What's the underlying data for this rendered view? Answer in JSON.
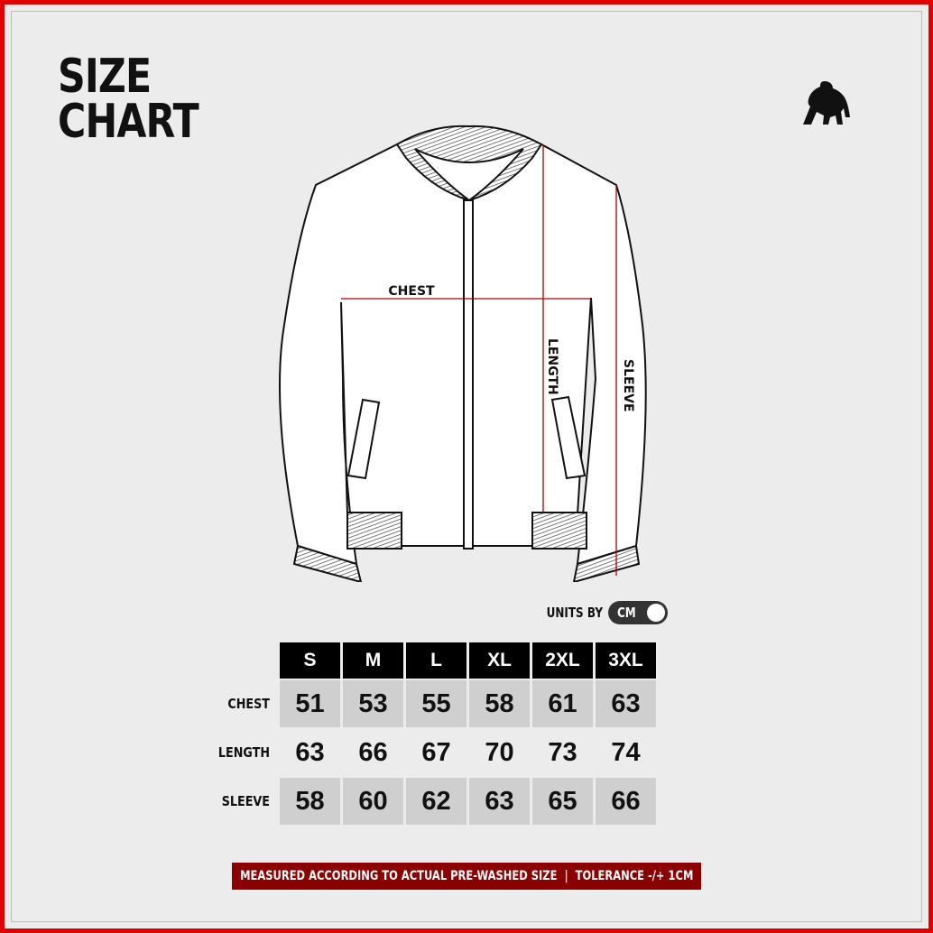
{
  "title": {
    "line1": "SIZE",
    "line2": "CHART"
  },
  "logo": {
    "icon": "gorilla-icon"
  },
  "diagram": {
    "labels": {
      "chest": "CHEST",
      "length": "LENGTH",
      "sleeve": "SLEEVE"
    },
    "measure_line_color": "#b00000"
  },
  "units": {
    "label": "UNITS BY",
    "value": "CM"
  },
  "table": {
    "sizes": [
      "S",
      "M",
      "L",
      "XL",
      "2XL",
      "3XL"
    ],
    "rows": [
      {
        "label": "CHEST",
        "values": [
          "51",
          "53",
          "55",
          "58",
          "61",
          "63"
        ]
      },
      {
        "label": "LENGTH",
        "values": [
          "63",
          "66",
          "67",
          "70",
          "73",
          "74"
        ]
      },
      {
        "label": "SLEEVE",
        "values": [
          "58",
          "60",
          "62",
          "63",
          "65",
          "66"
        ]
      }
    ]
  },
  "footer": {
    "text": "MEASURED ACCORDING TO ACTUAL PRE-WASHED SIZE  |  TOLERANCE -/+ 1CM",
    "color": "#8b0000"
  },
  "colors": {
    "border": "#e00000",
    "background": "#ececec"
  }
}
